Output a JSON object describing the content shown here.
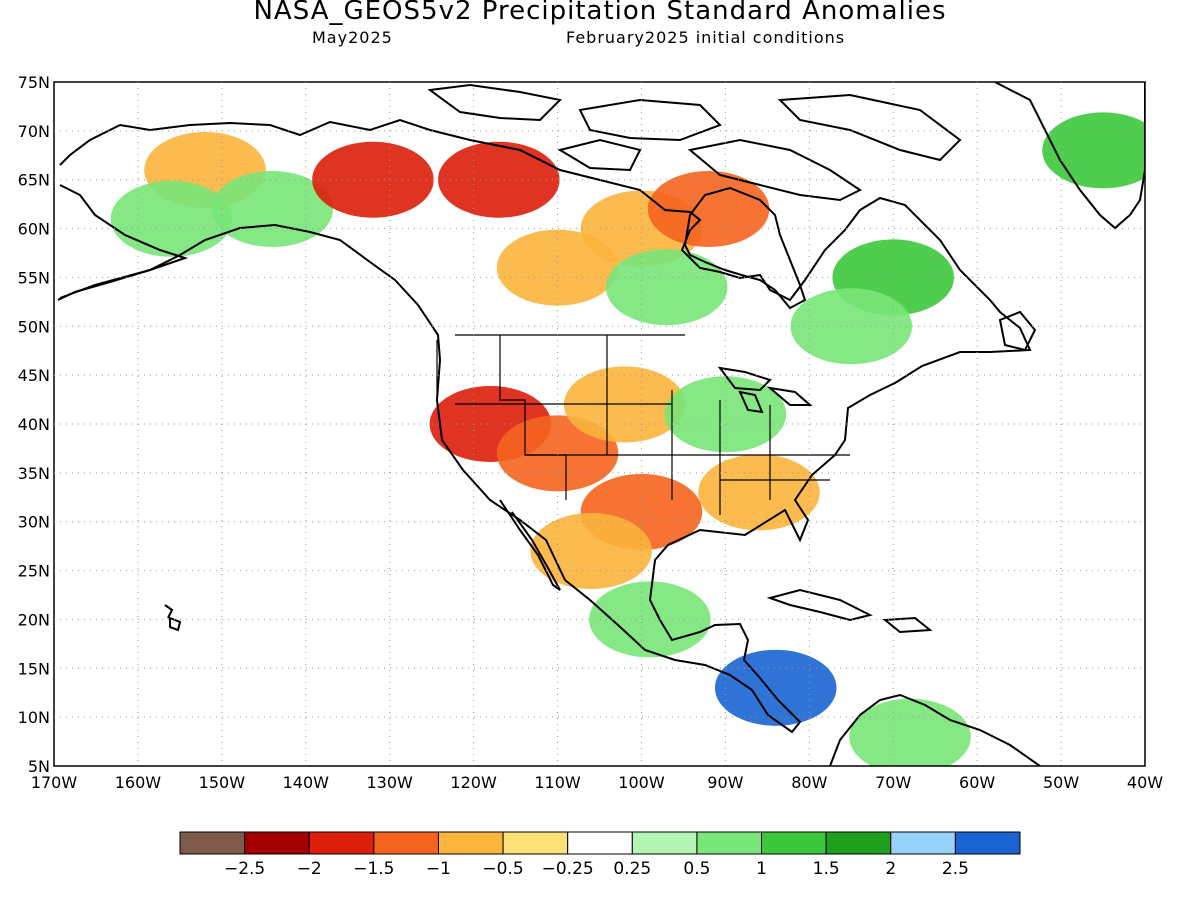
{
  "header": {
    "title": "NASA_GEOS5v2 Precipitation Standard Anomalies",
    "subtitle_left": "May2025",
    "subtitle_right": "February2025 initial conditions"
  },
  "map": {
    "lat_ticks": [
      "75N",
      "70N",
      "65N",
      "60N",
      "55N",
      "50N",
      "45N",
      "40N",
      "35N",
      "30N",
      "25N",
      "20N",
      "15N",
      "10N",
      "5N"
    ],
    "lon_ticks": [
      "170W",
      "160W",
      "150W",
      "140W",
      "130W",
      "120W",
      "110W",
      "100W",
      "90W",
      "80W",
      "70W",
      "60W",
      "50W",
      "40W"
    ],
    "extent": {
      "lon_min": -170,
      "lon_max": -40,
      "lat_min": 5,
      "lat_max": 75
    },
    "anomaly_regions": [
      {
        "name": "alaska-west-dry",
        "lon": -152,
        "lat": 66,
        "value": -0.7
      },
      {
        "name": "alaska-sw-wet",
        "lon": -156,
        "lat": 61,
        "value": 0.9
      },
      {
        "name": "alaska-south-wet",
        "lon": -144,
        "lat": 62,
        "value": 0.8
      },
      {
        "name": "yukon-dry",
        "lon": -132,
        "lat": 65,
        "value": -1.7
      },
      {
        "name": "nwt-dry",
        "lon": -117,
        "lat": 65,
        "value": -1.8
      },
      {
        "name": "hudson-west-dry",
        "lon": -100,
        "lat": 60,
        "value": -0.8
      },
      {
        "name": "hudson-east-dry",
        "lon": -92,
        "lat": 62,
        "value": -1.2
      },
      {
        "name": "prairies-dry",
        "lon": -110,
        "lat": 56,
        "value": -0.7
      },
      {
        "name": "canada-central-wet",
        "lon": -97,
        "lat": 54,
        "value": 0.7
      },
      {
        "name": "labrador-wet",
        "lon": -70,
        "lat": 55,
        "value": 1.4
      },
      {
        "name": "quebec-wet",
        "lon": -75,
        "lat": 50,
        "value": 0.9
      },
      {
        "name": "us-west-dry",
        "lon": -118,
        "lat": 40,
        "value": -1.7
      },
      {
        "name": "us-southwest-dry",
        "lon": -110,
        "lat": 37,
        "value": -1.3
      },
      {
        "name": "us-plains-dry",
        "lon": -102,
        "lat": 42,
        "value": -0.8
      },
      {
        "name": "texas-dry",
        "lon": -100,
        "lat": 31,
        "value": -1.1
      },
      {
        "name": "us-southeast-dry",
        "lon": -86,
        "lat": 33,
        "value": -0.8
      },
      {
        "name": "midwest-wet",
        "lon": -90,
        "lat": 41,
        "value": 0.8
      },
      {
        "name": "mexico-north-dry",
        "lon": -106,
        "lat": 27,
        "value": -0.6
      },
      {
        "name": "mexico-south-wet",
        "lon": -99,
        "lat": 20,
        "value": 0.9
      },
      {
        "name": "central-america-very-wet",
        "lon": -84,
        "lat": 13,
        "value": 2.6
      },
      {
        "name": "greenland-wet",
        "lon": -45,
        "lat": 68,
        "value": 1.3
      },
      {
        "name": "south-america-wet",
        "lon": -68,
        "lat": 8,
        "value": 0.8
      }
    ]
  },
  "colorbar": {
    "colors": [
      "#7d5a4a",
      "#a50000",
      "#dc1e0a",
      "#f5641e",
      "#fbb43c",
      "#fbe178",
      "#ffffff",
      "#b4f5b4",
      "#78e678",
      "#3cc83c",
      "#1ea01e",
      "#96d2fa",
      "#1964d2"
    ],
    "labels": [
      "−2.5",
      "−2",
      "−1.5",
      "−1",
      "−0.5",
      "−0.25",
      "0.25",
      "0.5",
      "1",
      "1.5",
      "2",
      "2.5"
    ]
  }
}
